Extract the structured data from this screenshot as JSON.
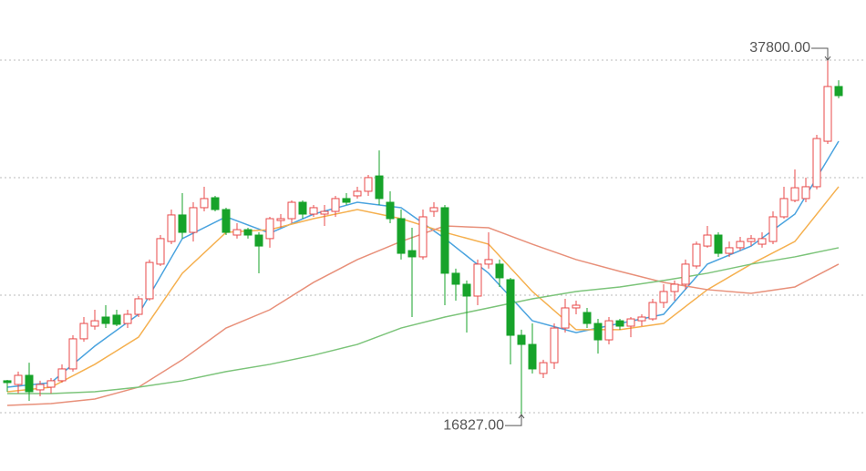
{
  "chart_data": {
    "type": "candlestick",
    "ylim": [
      16940,
      37800
    ],
    "gridlines": [
      37800,
      30850,
      23890,
      16940
    ],
    "up_color": "#e84a4a",
    "down_color": "#17a32a",
    "open": [
      18830,
      18610,
      19150,
      18290,
      18450,
      18830,
      19530,
      21310,
      22060,
      22600,
      22710,
      22220,
      22760,
      23680,
      25730,
      27070,
      28640,
      27610,
      29070,
      29660,
      28960,
      27450,
      27770,
      27450,
      27240,
      28310,
      28420,
      29390,
      28690,
      28690,
      28850,
      29610,
      29770,
      30040,
      30950,
      29390,
      28420,
      26530,
      26160,
      28850,
      29070,
      25190,
      24540,
      23840,
      25730,
      25730,
      24810,
      21520,
      20980,
      19260,
      19900,
      21950,
      23140,
      22870,
      22220,
      21250,
      22380,
      22060,
      22380,
      22490,
      23460,
      24110,
      24540,
      25620,
      26800,
      27450,
      26370,
      26700,
      27070,
      26910,
      27070,
      28530,
      29500,
      29610,
      30310,
      33000,
      36240
    ],
    "close": [
      18720,
      19150,
      18180,
      18610,
      18830,
      19530,
      21310,
      22220,
      22380,
      22220,
      22170,
      22760,
      23680,
      25830,
      27240,
      28640,
      27610,
      29070,
      29610,
      28960,
      27610,
      27770,
      27450,
      26800,
      28420,
      28420,
      29390,
      28690,
      29070,
      28850,
      29610,
      29390,
      30040,
      30850,
      29610,
      28420,
      26370,
      26160,
      28530,
      29070,
      25190,
      24540,
      23840,
      25730,
      26000,
      24920,
      21520,
      20980,
      19530,
      19900,
      21950,
      23140,
      23300,
      22220,
      21250,
      22380,
      22060,
      22490,
      22600,
      23460,
      24110,
      24540,
      25730,
      26910,
      27450,
      26370,
      26700,
      27070,
      27240,
      27240,
      28530,
      29610,
      30250,
      30310,
      33160,
      36240,
      35700
    ],
    "high": [
      18880,
      19370,
      19900,
      18830,
      18990,
      19800,
      21520,
      22600,
      23030,
      23300,
      23030,
      23030,
      23840,
      26000,
      27450,
      28960,
      29930,
      29390,
      30310,
      29770,
      29070,
      28150,
      27880,
      27610,
      28530,
      28690,
      29500,
      29500,
      29230,
      29230,
      29770,
      29930,
      30310,
      31010,
      32460,
      30040,
      28960,
      27880,
      28960,
      29390,
      29230,
      25460,
      24760,
      26000,
      27610,
      26000,
      24920,
      21850,
      22220,
      20070,
      22220,
      23680,
      23570,
      23140,
      22490,
      22600,
      22490,
      22600,
      22760,
      23680,
      24540,
      24760,
      26000,
      27070,
      27990,
      27610,
      27070,
      27340,
      27450,
      27610,
      28850,
      30310,
      31330,
      30850,
      33380,
      37800,
      36610
    ],
    "low": [
      18180,
      18070,
      17640,
      17910,
      18070,
      18720,
      19370,
      21140,
      21850,
      21950,
      22060,
      21950,
      22600,
      23570,
      25620,
      26910,
      27240,
      27070,
      28850,
      28850,
      27450,
      27240,
      27240,
      25190,
      26700,
      27880,
      28150,
      28420,
      28530,
      27990,
      28530,
      29230,
      29610,
      29770,
      29230,
      28150,
      26000,
      22600,
      26000,
      28530,
      23300,
      23570,
      21680,
      23300,
      25460,
      24380,
      19800,
      16827,
      19260,
      18990,
      19530,
      21680,
      22760,
      21950,
      20440,
      20980,
      21850,
      21410,
      22060,
      22380,
      23140,
      23570,
      24220,
      25460,
      26700,
      26160,
      26160,
      26530,
      26800,
      26700,
      26910,
      28420,
      29390,
      29390,
      30150,
      32840,
      35540
    ],
    "lines": [
      {
        "color": "#4aa3df",
        "x": [
          0,
          4,
          8,
          12,
          16,
          20,
          24,
          28,
          32,
          36,
          40,
          44,
          48,
          52,
          56,
          60,
          64,
          68,
          72,
          76
        ],
        "values": [
          18450,
          18720,
          20880,
          22760,
          27240,
          28530,
          27560,
          28690,
          29390,
          29070,
          27240,
          25190,
          22380,
          21680,
          22220,
          22760,
          25730,
          26800,
          28690,
          33000
        ]
      },
      {
        "color": "#f5b04f",
        "x": [
          0,
          4,
          8,
          12,
          16,
          20,
          24,
          28,
          32,
          36,
          40,
          44,
          48,
          52,
          56,
          60,
          64,
          68,
          72,
          76
        ],
        "values": [
          18180,
          18450,
          19800,
          21410,
          25190,
          27610,
          27770,
          28420,
          28960,
          28420,
          27610,
          26910,
          24110,
          21850,
          21850,
          22220,
          24220,
          25730,
          27070,
          30310
        ]
      },
      {
        "color": "#e8907a",
        "x": [
          0,
          4,
          8,
          12,
          16,
          20,
          24,
          28,
          32,
          36,
          40,
          44,
          48,
          52,
          56,
          60,
          64,
          68,
          72,
          76
        ],
        "values": [
          17370,
          17480,
          17750,
          18450,
          20070,
          21950,
          23030,
          24650,
          26000,
          27070,
          27990,
          27880,
          26910,
          26000,
          25300,
          24650,
          24220,
          24000,
          24380,
          25730
        ]
      },
      {
        "color": "#7cc47a",
        "x": [
          0,
          4,
          8,
          12,
          16,
          20,
          24,
          28,
          32,
          36,
          40,
          44,
          48,
          52,
          56,
          60,
          64,
          68,
          72,
          76
        ],
        "values": [
          18070,
          18070,
          18180,
          18450,
          18830,
          19370,
          19800,
          20340,
          20980,
          21950,
          22600,
          23140,
          23680,
          24110,
          24380,
          24760,
          25190,
          25730,
          26160,
          26700
        ]
      }
    ],
    "annotations": [
      {
        "label": "37800.00",
        "value": 37800
      },
      {
        "label": "16827.00",
        "value": 16827
      }
    ]
  }
}
